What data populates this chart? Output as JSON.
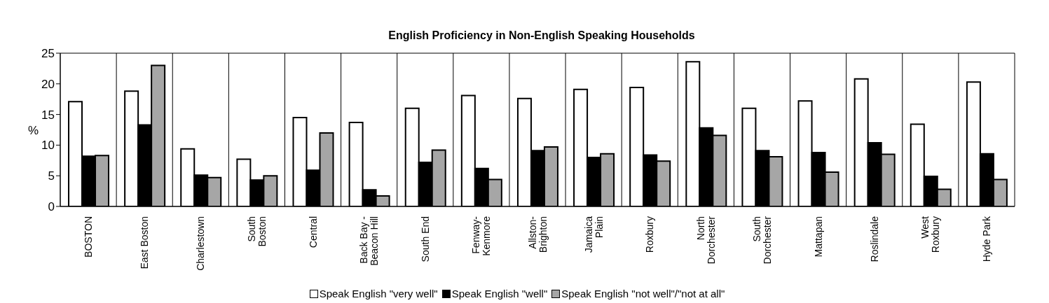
{
  "chart_data": {
    "type": "bar",
    "title": "English Proficiency in Non-English Speaking Households",
    "ylabel": "%",
    "categories": [
      "BOSTON",
      "East Boston",
      "Charlestown",
      "South Boston",
      "Central",
      "Back Bay - Beacon Hill",
      "South End",
      "Fenway-Kenmore",
      "Allston-Brighton",
      "Jamaica Plain",
      "Roxbury",
      "North Dorchester",
      "South Dorchester",
      "Mattapan",
      "Roslindale",
      "West Roxbury",
      "Hyde Park"
    ],
    "series": [
      {
        "name": "Speak English \"very well\"",
        "color": "#ffffff",
        "values": [
          17.1,
          18.8,
          9.4,
          7.7,
          14.5,
          13.7,
          16.0,
          18.1,
          17.6,
          19.1,
          19.4,
          23.6,
          16.0,
          17.2,
          20.8,
          13.4,
          20.3
        ]
      },
      {
        "name": "Speak English \"well\"",
        "color": "#000000",
        "values": [
          8.2,
          13.3,
          5.1,
          4.3,
          5.9,
          2.7,
          7.2,
          6.2,
          9.1,
          8.0,
          8.4,
          12.8,
          9.1,
          8.8,
          10.4,
          4.9,
          8.6
        ]
      },
      {
        "name": "Speak English \"not well\"/\"not at all\"",
        "color": "#a6a6a6",
        "values": [
          8.3,
          23.0,
          4.7,
          5.0,
          12.0,
          1.7,
          9.2,
          4.4,
          9.7,
          8.6,
          7.4,
          11.6,
          8.1,
          5.6,
          8.5,
          2.8,
          4.4
        ]
      }
    ],
    "ylim": [
      0,
      25
    ],
    "yticks": [
      0,
      5,
      10,
      15,
      20,
      25
    ],
    "grid": true,
    "legend": "bottom"
  }
}
